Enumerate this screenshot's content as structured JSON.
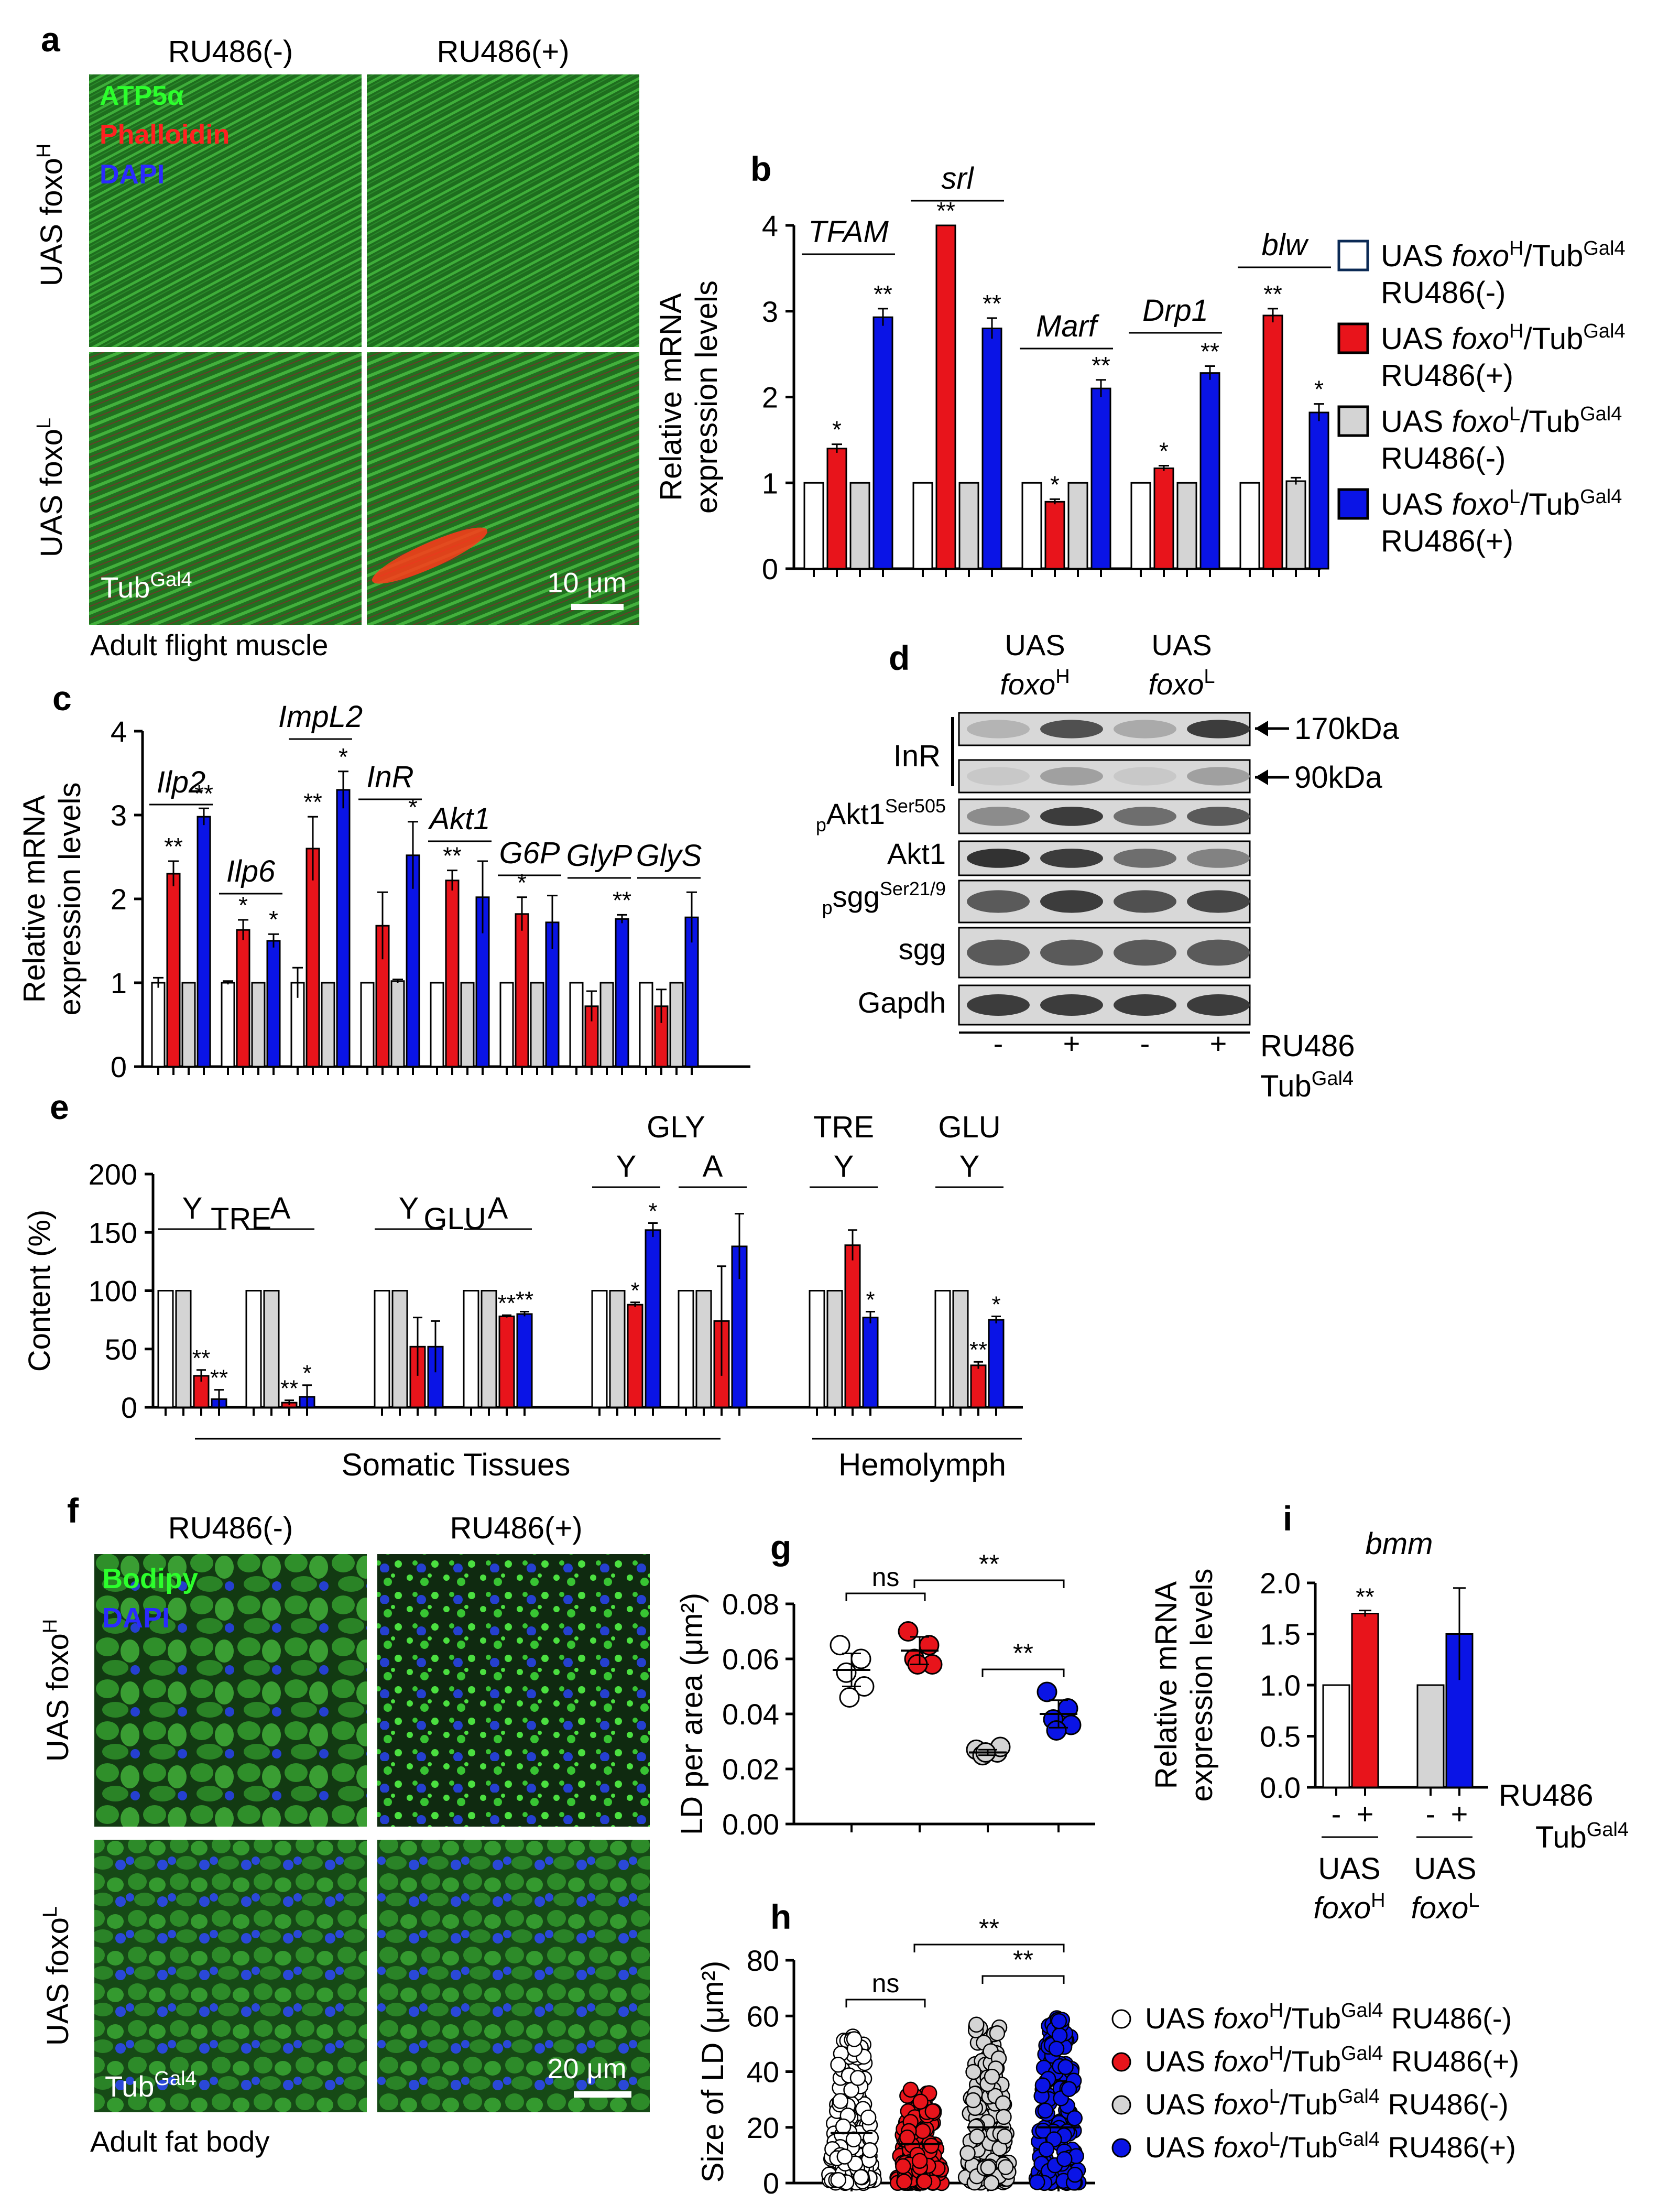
{
  "panel_letters": {
    "a": "a",
    "b": "b",
    "c": "c",
    "d": "d",
    "e": "e",
    "f": "f",
    "g": "g",
    "h": "h",
    "i": "i"
  },
  "colors": {
    "white": "#ffffff",
    "red": "#e8141b",
    "grey": "#d4d4d4",
    "blue": "#0a14e6",
    "black": "#000000"
  },
  "conditions": {
    "minus": "RU486(-)",
    "plus": "RU486(+)"
  },
  "genotypes": {
    "foxoH": "UAS foxo",
    "foxoL": "UAS foxo",
    "supH": "H",
    "supL": "L"
  },
  "tub": {
    "base": "Tub",
    "sup": "Gal4"
  },
  "panel_a": {
    "stain_atp": "ATP5α",
    "stain_phall": "Phalloidin",
    "stain_dapi": "DAPI",
    "scale": "10 μm",
    "caption": "Adult flight muscle"
  },
  "panel_f": {
    "stain_bodipy": "Bodipy",
    "stain_dapi": "DAPI",
    "scale": "20 μm",
    "caption": "Adult fat body"
  },
  "legend_b": [
    {
      "label": "UAS foxo",
      "sup": "H",
      "tub": "/Tub",
      "tsup": "Gal4",
      "cond": "RU486(-)",
      "color": "white"
    },
    {
      "label": "UAS foxo",
      "sup": "H",
      "tub": "/Tub",
      "tsup": "Gal4",
      "cond": "RU486(+)",
      "color": "red"
    },
    {
      "label": "UAS foxo",
      "sup": "L",
      "tub": "/Tub",
      "tsup": "Gal4",
      "cond": "RU486(-)",
      "color": "grey"
    },
    {
      "label": "UAS foxo",
      "sup": "L",
      "tub": "/Tub",
      "tsup": "Gal4",
      "cond": "RU486(+)",
      "color": "blue"
    }
  ],
  "chart_data": [
    {
      "panel": "b",
      "type": "bar",
      "ylabel": "Relative mRNA expression levels",
      "ylim": [
        0,
        4
      ],
      "yticks": [
        0,
        1,
        2,
        3,
        4
      ],
      "groups": [
        {
          "gene": "TFAM",
          "values": [
            1,
            1.4,
            1,
            2.93
          ],
          "errors": [
            0,
            0.05,
            0,
            0.1
          ],
          "sig": [
            "",
            "*",
            "",
            "**"
          ]
        },
        {
          "gene": "srl",
          "values": [
            1,
            4.0,
            1,
            2.8
          ],
          "errors": [
            0,
            0,
            0,
            0.12
          ],
          "sig": [
            "",
            "**",
            "",
            "**"
          ]
        },
        {
          "gene": "Marf",
          "values": [
            1,
            0.78,
            1,
            2.1
          ],
          "errors": [
            0,
            0.03,
            0,
            0.1
          ],
          "sig": [
            "",
            "*",
            "",
            "**"
          ]
        },
        {
          "gene": "Drp1",
          "values": [
            1,
            1.17,
            1,
            2.28
          ],
          "errors": [
            0,
            0.03,
            0,
            0.08
          ],
          "sig": [
            "",
            "*",
            "",
            "**"
          ]
        },
        {
          "gene": "blw",
          "values": [
            1,
            2.95,
            1.02,
            1.82
          ],
          "errors": [
            0,
            0.08,
            0.04,
            0.1
          ],
          "sig": [
            "",
            "**",
            "",
            "*"
          ]
        }
      ]
    },
    {
      "panel": "c",
      "type": "bar",
      "ylabel": "Relative mRNA expression levels",
      "ylim": [
        0,
        4
      ],
      "yticks": [
        0,
        1,
        2,
        3,
        4
      ],
      "groups": [
        {
          "gene": "Ilp2",
          "values": [
            1,
            2.3,
            1,
            2.98
          ],
          "errors": [
            0.06,
            0.15,
            0,
            0.1
          ],
          "sig": [
            "",
            "**",
            "",
            "**"
          ]
        },
        {
          "gene": "Ilp6",
          "values": [
            1,
            1.63,
            1,
            1.5
          ],
          "errors": [
            0.02,
            0.12,
            0,
            0.08
          ],
          "sig": [
            "",
            "*",
            "",
            "*"
          ]
        },
        {
          "gene": "ImpL2",
          "values": [
            1,
            2.6,
            1,
            3.3
          ],
          "errors": [
            0.18,
            0.38,
            0,
            0.22
          ],
          "sig": [
            "",
            "**",
            "",
            "*"
          ]
        },
        {
          "gene": "InR",
          "values": [
            1,
            1.68,
            1.02,
            2.52
          ],
          "errors": [
            0,
            0.4,
            0.02,
            0.4
          ],
          "sig": [
            "",
            "",
            "",
            "*"
          ]
        },
        {
          "gene": "Akt1",
          "values": [
            1,
            2.22,
            1,
            2.02
          ],
          "errors": [
            0,
            0.12,
            0,
            0.43
          ],
          "sig": [
            "",
            "**",
            "",
            ""
          ]
        },
        {
          "gene": "G6P",
          "values": [
            1,
            1.82,
            1,
            1.72
          ],
          "errors": [
            0,
            0.2,
            0,
            0.32
          ],
          "sig": [
            "",
            "*",
            "",
            ""
          ]
        },
        {
          "gene": "GlyP",
          "values": [
            1,
            0.72,
            1,
            1.76
          ],
          "errors": [
            0,
            0.18,
            0,
            0.05
          ],
          "sig": [
            "",
            "",
            "",
            "**"
          ]
        },
        {
          "gene": "GlyS",
          "values": [
            1,
            0.72,
            1,
            1.78
          ],
          "errors": [
            0,
            0.2,
            0,
            0.3
          ],
          "sig": [
            "",
            "",
            "",
            ""
          ]
        }
      ]
    },
    {
      "panel": "e",
      "type": "bar",
      "ylabel": "Content (%)",
      "ylim": [
        0,
        200
      ],
      "yticks": [
        0,
        50,
        100,
        150,
        200
      ],
      "region_labels": [
        "Somatic Tissues",
        "Hemolymph"
      ],
      "groups": [
        {
          "top": "TRE",
          "stage": "Y",
          "values": [
            100,
            100,
            27,
            7
          ],
          "errors": [
            0,
            0,
            5,
            8
          ],
          "sig": [
            "",
            "",
            "**",
            "**"
          ]
        },
        {
          "top": "",
          "stage": "A",
          "values": [
            100,
            100,
            4,
            9
          ],
          "errors": [
            0,
            0,
            2,
            10
          ],
          "sig": [
            "",
            "",
            "**",
            "*"
          ]
        },
        {
          "top": "GLU",
          "stage": "Y",
          "values": [
            100,
            100,
            52,
            52
          ],
          "errors": [
            0,
            0,
            25,
            22
          ],
          "sig": [
            "",
            "",
            "",
            ""
          ]
        },
        {
          "top": "",
          "stage": "A",
          "values": [
            100,
            100,
            78,
            80
          ],
          "errors": [
            0,
            0,
            1,
            2
          ],
          "sig": [
            "",
            "",
            "**",
            "**"
          ]
        },
        {
          "top": "GLY",
          "stage": "Y",
          "values": [
            100,
            100,
            88,
            152
          ],
          "errors": [
            0,
            0,
            2,
            6
          ],
          "sig": [
            "",
            "",
            "*",
            "*"
          ]
        },
        {
          "top": "",
          "stage": "A",
          "values": [
            100,
            100,
            74,
            138
          ],
          "errors": [
            0,
            0,
            47,
            28
          ],
          "sig": [
            "",
            "",
            "",
            ""
          ]
        },
        {
          "top": "TRE",
          "stage": "Y",
          "values": [
            100,
            100,
            139,
            77
          ],
          "errors": [
            0,
            0,
            13,
            5
          ],
          "sig": [
            "",
            "",
            "",
            "*"
          ]
        },
        {
          "top": "GLU",
          "stage": "Y",
          "values": [
            100,
            100,
            36,
            75
          ],
          "errors": [
            0,
            0,
            3,
            3
          ],
          "sig": [
            "",
            "",
            "**",
            "*"
          ]
        }
      ]
    },
    {
      "panel": "g",
      "type": "scatter",
      "ylabel": "LD per area (μm²)",
      "ylim": [
        0,
        0.08
      ],
      "yticks": [
        "0.00",
        "0.02",
        "0.04",
        "0.06",
        "0.08"
      ],
      "series": [
        {
          "color": "white",
          "points": [
            0.065,
            0.06,
            0.055,
            0.05,
            0.046
          ],
          "mean": 0.056,
          "sd": 0.006
        },
        {
          "color": "red",
          "points": [
            0.07,
            0.065,
            0.06,
            0.058,
            0.058
          ],
          "mean": 0.063,
          "sd": 0.005
        },
        {
          "color": "grey",
          "points": [
            0.027,
            0.026,
            0.025,
            0.028,
            0.026
          ],
          "mean": 0.026,
          "sd": 0.001
        },
        {
          "color": "blue",
          "points": [
            0.048,
            0.042,
            0.038,
            0.036,
            0.034
          ],
          "mean": 0.04,
          "sd": 0.005
        }
      ],
      "brackets": [
        {
          "from": 0,
          "to": 1,
          "label": "ns"
        },
        {
          "from": 1,
          "to": 3,
          "label": "**"
        },
        {
          "from": 2,
          "to": 3,
          "label": "**"
        }
      ]
    },
    {
      "panel": "h",
      "type": "scatter",
      "ylabel": "Size of LD (μm²)",
      "ylim": [
        0,
        80
      ],
      "yticks": [
        0,
        20,
        40,
        60,
        80
      ],
      "series": [
        {
          "color": "white",
          "max": 55,
          "mean": 18
        },
        {
          "color": "red",
          "max": 34,
          "mean": 14
        },
        {
          "color": "grey",
          "max": 58,
          "mean": 20
        },
        {
          "color": "blue",
          "max": 60,
          "mean": 20
        }
      ],
      "brackets": [
        {
          "from": 0,
          "to": 1,
          "label": "ns"
        },
        {
          "from": 1,
          "to": 3,
          "label": "**"
        },
        {
          "from": 2,
          "to": 3,
          "label": "**"
        }
      ]
    },
    {
      "panel": "i",
      "type": "bar",
      "title": "bmm",
      "ylabel": "Relative mRNA expression levels",
      "ylim": [
        0,
        2
      ],
      "yticks": [
        "0.0",
        "0.5",
        "1.0",
        "1.5",
        "2.0"
      ],
      "values": [
        1,
        1.7,
        1,
        1.5
      ],
      "errors": [
        0,
        0.03,
        0,
        0.45
      ],
      "sig": [
        "",
        "**",
        "",
        ""
      ],
      "x_marks": [
        "-",
        "+",
        "-",
        "+"
      ],
      "x_side": "RU486"
    }
  ],
  "panel_d": {
    "header_H": "UAS",
    "header_H2": "foxo",
    "header_L": "UAS",
    "header_L2": "foxo",
    "rows": [
      {
        "label": "InR",
        "pre": "",
        "sup": ""
      },
      {
        "label": "",
        "pre": "",
        "sup": ""
      },
      {
        "label": "Akt1",
        "pre": "p",
        "sup": "Ser505"
      },
      {
        "label": "Akt1",
        "pre": "",
        "sup": ""
      },
      {
        "label": "sgg",
        "pre": "p",
        "sup": "Ser21/9"
      },
      {
        "label": "sgg",
        "pre": "",
        "sup": ""
      },
      {
        "label": "Gapdh",
        "pre": "",
        "sup": ""
      }
    ],
    "kda1": "170kDa",
    "kda2": "90kDa",
    "lanes": [
      "-",
      "+",
      "-",
      "+"
    ],
    "ru": "RU486"
  }
}
